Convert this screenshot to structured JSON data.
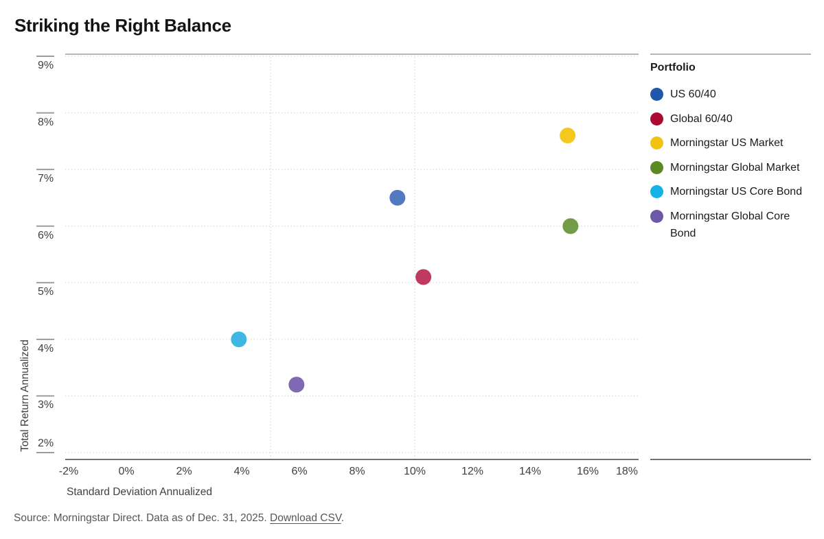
{
  "page": {
    "title": "Striking the Right Balance",
    "source": {
      "prefix": "Source: Morningstar Direct. Data as of Dec. 31, 2025. ",
      "link": "Download CSV",
      "suffix": "."
    }
  },
  "chart_data": {
    "type": "scatter",
    "title": "Striking the Right Balance",
    "xlabel": "Standard Deviation Annualized",
    "ylabel": "Total Return Annualized",
    "xlim": [
      -2,
      18
    ],
    "ylim": [
      2,
      9
    ],
    "x_ticks": [
      -2,
      0,
      2,
      4,
      6,
      8,
      10,
      12,
      14,
      16,
      18
    ],
    "y_ticks": [
      2,
      3,
      4,
      5,
      6,
      7,
      8,
      9
    ],
    "tick_unit": "%",
    "grid": {
      "horizontal_dotted_at_every_y_tick": true,
      "vertical_dotted_at": [
        5,
        10
      ]
    },
    "legend_title": "Portfolio",
    "legend_position": "right",
    "series": [
      {
        "name": "US 60/40",
        "x": 9.4,
        "y": 6.5,
        "legend_color": "#1f58ab",
        "dot_color": "#5379c1"
      },
      {
        "name": "Global 60/40",
        "x": 10.3,
        "y": 5.1,
        "legend_color": "#ab0a33",
        "dot_color": "#c03a60"
      },
      {
        "name": "Morningstar US Market",
        "x": 15.3,
        "y": 7.6,
        "legend_color": "#f1c310",
        "dot_color": "#f4c91e"
      },
      {
        "name": "Morningstar Global Market",
        "x": 15.4,
        "y": 6.0,
        "legend_color": "#5b8a23",
        "dot_color": "#739c49"
      },
      {
        "name": "Morningstar US Core Bond",
        "x": 3.9,
        "y": 4.0,
        "legend_color": "#16b2e5",
        "dot_color": "#40b7e3"
      },
      {
        "name": "Morningstar Global Core Bond",
        "x": 5.9,
        "y": 3.2,
        "legend_color": "#6c58a6",
        "dot_color": "#7e6ab3"
      }
    ],
    "colors": {
      "top_border": "#b5b5b7",
      "bottom_border": "#717174",
      "tick_mark": "#9b9b9d",
      "grid_dotted": "#d4d4d6"
    }
  }
}
